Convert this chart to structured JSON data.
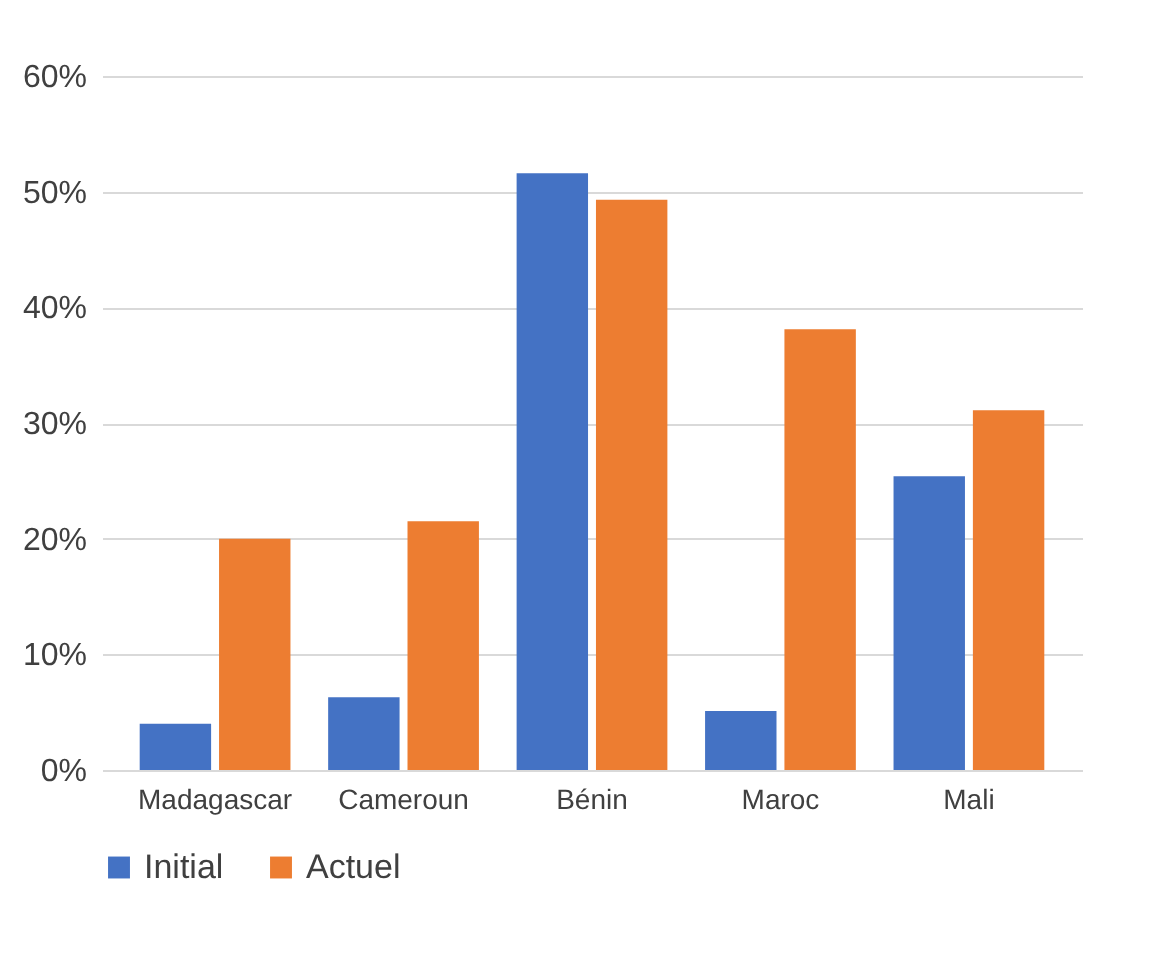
{
  "chart_data": {
    "type": "bar",
    "categories": [
      "Madagascar",
      "Cameroun",
      "Bénin",
      "Maroc",
      "Mali"
    ],
    "series": [
      {
        "name": "Initial",
        "color": "#4472c4",
        "values": [
          4.0,
          6.3,
          51.6,
          5.1,
          25.4
        ]
      },
      {
        "name": "Actuel",
        "color": "#ed7d31",
        "values": [
          20.0,
          21.5,
          49.3,
          38.1,
          31.1
        ]
      }
    ],
    "ylim": [
      0,
      60
    ],
    "yticks": [
      {
        "value": 0,
        "label": "0%"
      },
      {
        "value": 10,
        "label": "10%"
      },
      {
        "value": 20,
        "label": "20%"
      },
      {
        "value": 30,
        "label": "30%"
      },
      {
        "value": 40,
        "label": "40%"
      },
      {
        "value": 50,
        "label": "50%"
      },
      {
        "value": 60,
        "label": "60%"
      }
    ],
    "grid": "y",
    "legend": "bottom"
  }
}
